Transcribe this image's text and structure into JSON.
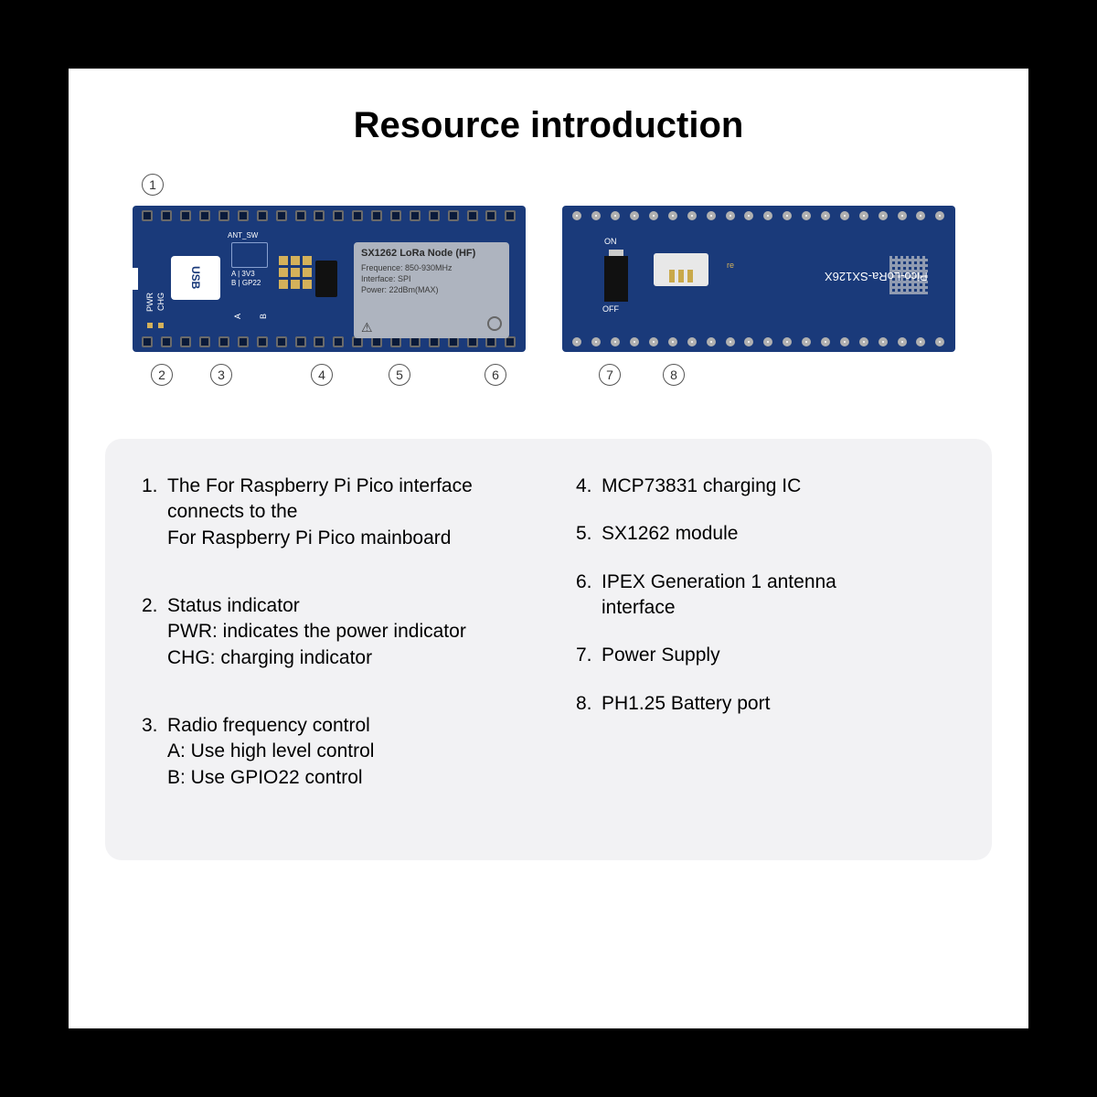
{
  "title": "Resource introduction",
  "colors": {
    "page_bg": "#000000",
    "card_bg": "#ffffff",
    "board_bg": "#1a3a7a",
    "module_bg": "#aeb4bf",
    "desc_bg": "#f2f2f4",
    "text": "#000000",
    "silk_white": "#ffffff",
    "pad_gold": "#d4b15a"
  },
  "markers": {
    "m1": "1",
    "m2": "2",
    "m3": "3",
    "m4": "4",
    "m5": "5",
    "m6": "6",
    "m7": "7",
    "m8": "8"
  },
  "left_board": {
    "usb": "USB",
    "pwr": "PWR",
    "chg": "CHG",
    "ant_sw": "ANT_SW",
    "ant_lines": "A | 3V3\nB | GP22",
    "ab_a": "A",
    "ab_b": "B",
    "module_title": "SX1262 LoRa Node (HF)",
    "module_lines": "Frequence: 850-930MHz\nInterface: SPI\nPower: 22dBm(MAX)",
    "pin_count": 20
  },
  "right_board": {
    "on": "ON",
    "off": "OFF",
    "re": "re",
    "name": "Pico-LoRa-SX126X",
    "hole_count": 20
  },
  "desc": {
    "left": [
      {
        "n": "1.",
        "t": "The For Raspberry Pi Pico interface connects to the\nFor Raspberry Pi Pico mainboard"
      },
      {
        "n": "2.",
        "t": "Status indicator\nPWR: indicates the power indicator\nCHG: charging indicator"
      },
      {
        "n": "3.",
        "t": "Radio frequency  control\nA: Use high level control\nB: Use GPIO22 control"
      }
    ],
    "right": [
      {
        "n": "4.",
        "t": "MCP73831 charging IC"
      },
      {
        "n": "5.",
        "t": "SX1262 module"
      },
      {
        "n": "6.",
        "t": "IPEX Generation 1 antenna\n interface"
      },
      {
        "n": "7.",
        "t": "Power Supply"
      },
      {
        "n": "8.",
        "t": "PH1.25 Battery port"
      }
    ]
  }
}
